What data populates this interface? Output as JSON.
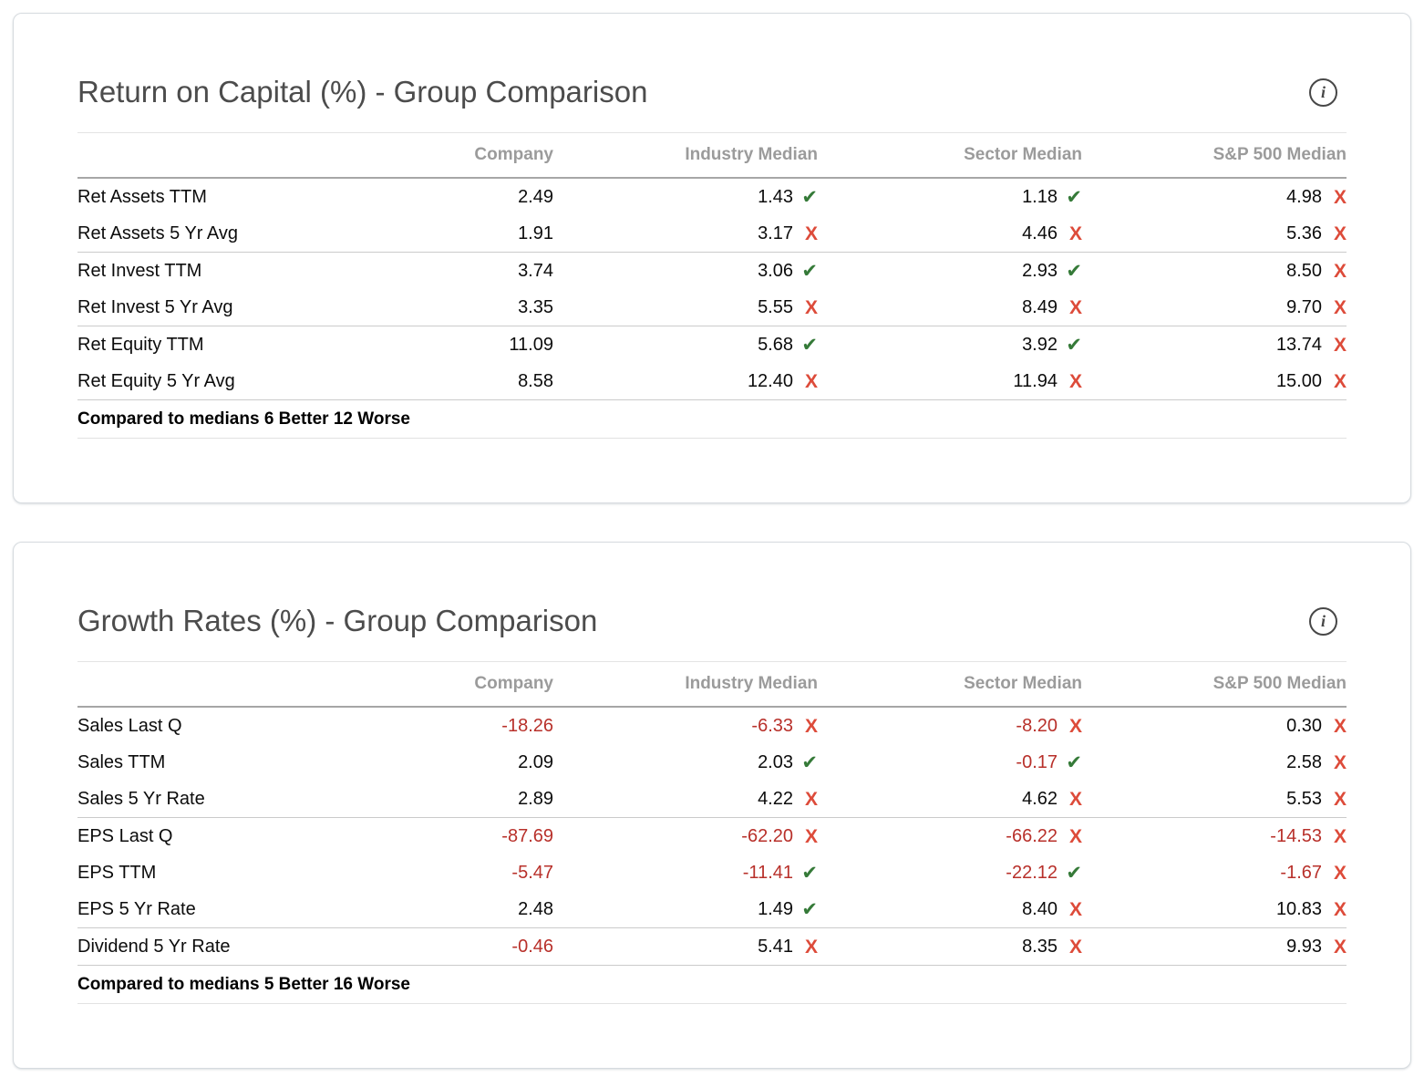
{
  "colors": {
    "negative_text": "#b8302a",
    "check_green": "#357a38",
    "cross_red": "#dd4b3a",
    "header_gray": "#9b9b9b",
    "title_gray": "#4c4c4c"
  },
  "marks": {
    "check": "✔",
    "cross": "X"
  },
  "cards": [
    {
      "title": "Return on Capital (%) - Group Comparison",
      "info_icon": "i",
      "columns": [
        "",
        "Company",
        "Industry Median",
        "Sector Median",
        "S&P 500 Median"
      ],
      "rows": [
        {
          "label": "Ret Assets TTM",
          "company": "2.49",
          "medians": [
            {
              "v": "1.43",
              "mark": "check"
            },
            {
              "v": "1.18",
              "mark": "check"
            },
            {
              "v": "4.98",
              "mark": "cross"
            }
          ]
        },
        {
          "label": "Ret Assets 5 Yr Avg",
          "company": "1.91",
          "medians": [
            {
              "v": "3.17",
              "mark": "cross"
            },
            {
              "v": "4.46",
              "mark": "cross"
            },
            {
              "v": "5.36",
              "mark": "cross"
            }
          ]
        },
        {
          "label": "Ret Invest TTM",
          "company": "3.74",
          "group_start": true,
          "medians": [
            {
              "v": "3.06",
              "mark": "check"
            },
            {
              "v": "2.93",
              "mark": "check"
            },
            {
              "v": "8.50",
              "mark": "cross"
            }
          ]
        },
        {
          "label": "Ret Invest 5 Yr Avg",
          "company": "3.35",
          "medians": [
            {
              "v": "5.55",
              "mark": "cross"
            },
            {
              "v": "8.49",
              "mark": "cross"
            },
            {
              "v": "9.70",
              "mark": "cross"
            }
          ]
        },
        {
          "label": "Ret Equity TTM",
          "company": "11.09",
          "group_start": true,
          "medians": [
            {
              "v": "5.68",
              "mark": "check"
            },
            {
              "v": "3.92",
              "mark": "check"
            },
            {
              "v": "13.74",
              "mark": "cross"
            }
          ]
        },
        {
          "label": "Ret Equity 5 Yr Avg",
          "company": "8.58",
          "medians": [
            {
              "v": "12.40",
              "mark": "cross"
            },
            {
              "v": "11.94",
              "mark": "cross"
            },
            {
              "v": "15.00",
              "mark": "cross"
            }
          ]
        }
      ],
      "footer": "Compared to medians 6 Better 12 Worse"
    },
    {
      "title": "Growth Rates (%) - Group Comparison",
      "info_icon": "i",
      "columns": [
        "",
        "Company",
        "Industry Median",
        "Sector Median",
        "S&P 500 Median"
      ],
      "rows": [
        {
          "label": "Sales Last Q",
          "company": "-18.26",
          "medians": [
            {
              "v": "-6.33",
              "mark": "cross"
            },
            {
              "v": "-8.20",
              "mark": "cross"
            },
            {
              "v": "0.30",
              "mark": "cross"
            }
          ]
        },
        {
          "label": "Sales TTM",
          "company": "2.09",
          "medians": [
            {
              "v": "2.03",
              "mark": "check"
            },
            {
              "v": "-0.17",
              "mark": "check"
            },
            {
              "v": "2.58",
              "mark": "cross"
            }
          ]
        },
        {
          "label": "Sales 5 Yr Rate",
          "company": "2.89",
          "medians": [
            {
              "v": "4.22",
              "mark": "cross"
            },
            {
              "v": "4.62",
              "mark": "cross"
            },
            {
              "v": "5.53",
              "mark": "cross"
            }
          ]
        },
        {
          "label": "EPS Last Q",
          "company": "-87.69",
          "group_start": true,
          "medians": [
            {
              "v": "-62.20",
              "mark": "cross"
            },
            {
              "v": "-66.22",
              "mark": "cross"
            },
            {
              "v": "-14.53",
              "mark": "cross"
            }
          ]
        },
        {
          "label": "EPS TTM",
          "company": "-5.47",
          "medians": [
            {
              "v": "-11.41",
              "mark": "check"
            },
            {
              "v": "-22.12",
              "mark": "check"
            },
            {
              "v": "-1.67",
              "mark": "cross"
            }
          ]
        },
        {
          "label": "EPS 5 Yr Rate",
          "company": "2.48",
          "medians": [
            {
              "v": "1.49",
              "mark": "check"
            },
            {
              "v": "8.40",
              "mark": "cross"
            },
            {
              "v": "10.83",
              "mark": "cross"
            }
          ]
        },
        {
          "label": "Dividend 5 Yr Rate",
          "company": "-0.46",
          "group_start": true,
          "medians": [
            {
              "v": "5.41",
              "mark": "cross"
            },
            {
              "v": "8.35",
              "mark": "cross"
            },
            {
              "v": "9.93",
              "mark": "cross"
            }
          ]
        }
      ],
      "footer": "Compared to medians 5 Better 16 Worse"
    }
  ]
}
